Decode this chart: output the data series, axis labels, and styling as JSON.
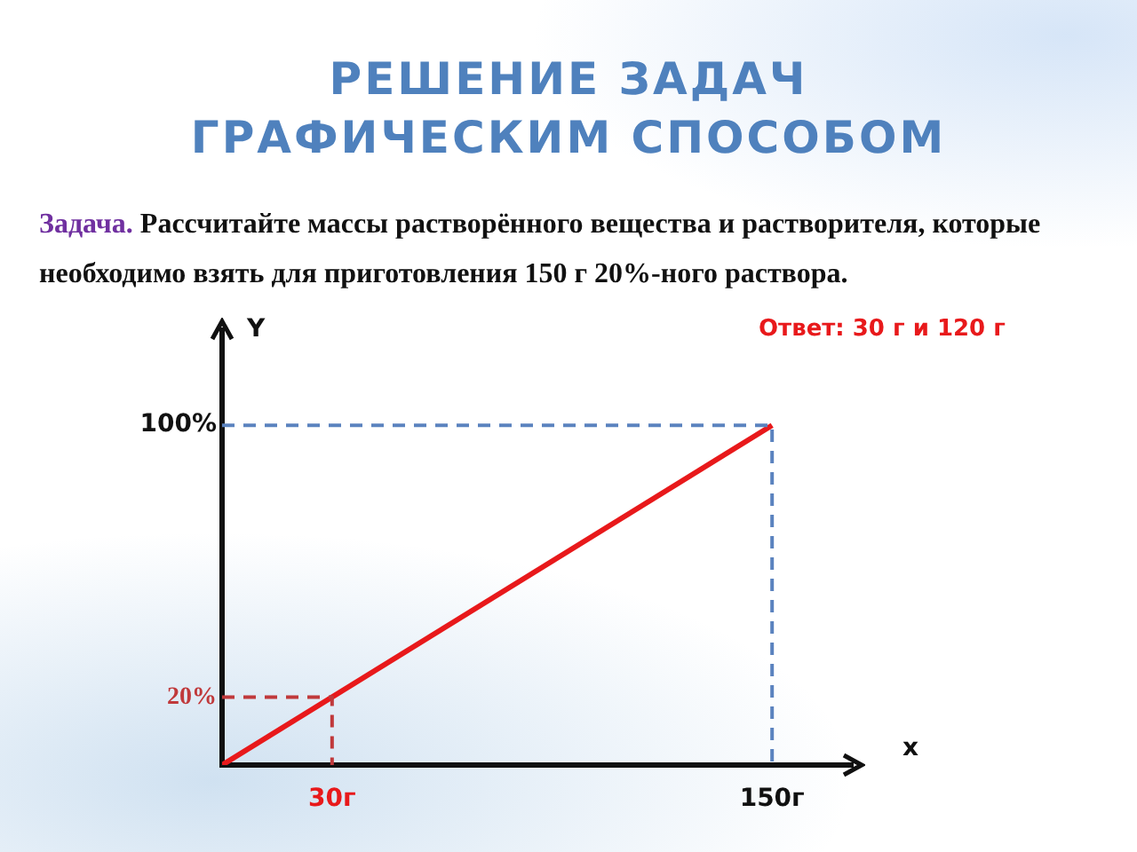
{
  "chart_data": {
    "type": "line",
    "title": "РЕШЕНИЕ ЗАДАЧ ГРАФИЧЕСКИМ СПОСОБОМ",
    "subtitle": "Задача. Рассчитайте массы растворённого вещества и растворителя, которые необходимо взять для приготовления 150 г 20%-ного раствора.",
    "xlabel": "x",
    "ylabel": "Y",
    "annotations": [
      "Ответ: 30 г и 120 г"
    ],
    "series": [
      {
        "color": "#e8191b",
        "x": [
          0,
          150
        ],
        "values": [
          0,
          100
        ],
        "line_style": "solid"
      },
      {
        "color": "#5b83bf",
        "x": [
          0,
          150,
          150
        ],
        "values": [
          100,
          100,
          0
        ],
        "line_style": "dashed"
      },
      {
        "color": "#c0393b",
        "x": [
          0,
          30,
          30
        ],
        "values": [
          20,
          20,
          0
        ],
        "line_style": "dashed"
      }
    ],
    "xlim": [
      0,
      172
    ],
    "ylim": [
      0,
      128
    ],
    "xticks": [
      {
        "value": 30,
        "label": "30г"
      },
      {
        "value": 150,
        "label": "150г"
      }
    ],
    "yticks": [
      {
        "value": 20,
        "label": "20%"
      },
      {
        "value": 100,
        "label": "100%"
      }
    ],
    "grid": false,
    "legend": false,
    "marker": "none"
  }
}
